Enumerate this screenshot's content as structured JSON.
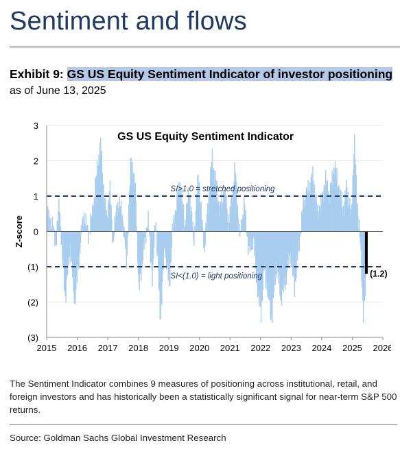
{
  "header": {
    "section_title": "Sentiment and flows"
  },
  "exhibit": {
    "label": "Exhibit 9:",
    "title": "GS US Equity Sentiment Indicator of investor positioning",
    "asof": "as of June 13, 2025"
  },
  "chart_data": {
    "type": "bar",
    "title": "GS US Equity Sentiment Indicator",
    "ylabel": "Z-score",
    "xlabel": "",
    "xlim": [
      2015,
      2026
    ],
    "ylim": [
      -3,
      3
    ],
    "x_ticks": [
      2015,
      2016,
      2017,
      2018,
      2019,
      2020,
      2021,
      2022,
      2023,
      2024,
      2025,
      2026
    ],
    "x_tick_labels": [
      "2015",
      "2016",
      "2017",
      "2018",
      "2019",
      "2020",
      "2021",
      "2022",
      "2023",
      "2024",
      "2025",
      "2026"
    ],
    "y_ticks": [
      3,
      2,
      1,
      0,
      -1,
      -2,
      -3
    ],
    "y_tick_labels": [
      "3",
      "2",
      "1",
      "0",
      "(1)",
      "(2)",
      "(3)"
    ],
    "thresholds": [
      {
        "value": 1.0,
        "label": "SI>1.0 = stretched positioning"
      },
      {
        "value": -1.0,
        "label": "SI<(1.0) = light positioning"
      }
    ],
    "latest": {
      "x": 2025.46,
      "value": -1.2,
      "label": "(1.2)"
    },
    "grid": true,
    "colors": {
      "bars": "#a9cdee",
      "threshold": "#1f3864",
      "latest": "#000000"
    },
    "series": [
      {
        "x": [
          2015.0,
          2015.15,
          2015.3,
          2015.4,
          2015.5,
          2015.6,
          2015.75,
          2015.9,
          2016.0,
          2016.1,
          2016.2,
          2016.35,
          2016.5,
          2016.6,
          2016.75,
          2016.85,
          2016.95,
          2017.05,
          2017.15,
          2017.3,
          2017.45,
          2017.6,
          2017.75,
          2017.9,
          2018.0,
          2018.15,
          2018.3,
          2018.45,
          2018.55,
          2018.7,
          2018.85,
          2019.0,
          2019.1,
          2019.2,
          2019.35,
          2019.5,
          2019.65,
          2019.8,
          2019.95,
          2020.05,
          2020.15,
          2020.25,
          2020.4,
          2020.5,
          2020.65,
          2020.8,
          2020.95,
          2021.05,
          2021.15,
          2021.3,
          2021.45,
          2021.6,
          2021.75,
          2021.9,
          2022.0,
          2022.1,
          2022.2,
          2022.35,
          2022.5,
          2022.65,
          2022.8,
          2022.95,
          2023.1,
          2023.25,
          2023.4,
          2023.55,
          2023.7,
          2023.85,
          2024.0,
          2024.1,
          2024.25,
          2024.4,
          2024.55,
          2024.7,
          2024.8,
          2024.95,
          2025.05,
          2025.15,
          2025.25,
          2025.35,
          2025.46
        ],
        "values": [
          0.5,
          0.2,
          -0.3,
          0.9,
          -0.8,
          -1.9,
          -0.4,
          -2.0,
          -1.2,
          -0.2,
          0.5,
          -0.1,
          0.6,
          1.5,
          2.5,
          1.2,
          0.3,
          1.3,
          -0.3,
          0.8,
          0.6,
          -0.9,
          2.2,
          1.0,
          -1.7,
          -0.6,
          0.4,
          -1.4,
          0.5,
          -2.5,
          -0.4,
          -1.6,
          0.0,
          0.6,
          1.4,
          0.2,
          1.2,
          -0.3,
          1.7,
          0.4,
          -0.5,
          0.6,
          2.1,
          1.5,
          0.6,
          1.2,
          0.2,
          1.0,
          1.8,
          -0.2,
          0.8,
          -0.6,
          -0.2,
          -1.8,
          -2.3,
          -1.0,
          -1.6,
          -2.5,
          -0.9,
          -1.9,
          -1.4,
          -0.6,
          -1.6,
          -0.3,
          0.9,
          1.2,
          1.6,
          0.5,
          0.9,
          1.5,
          1.0,
          1.9,
          1.2,
          0.6,
          1.3,
          0.4,
          2.6,
          0.8,
          -0.4,
          -2.4,
          -1.2
        ]
      }
    ]
  },
  "footnote": "The Sentiment Indicator combines 9 measures of positioning across institutional, retail, and foreign investors and has historically been a statistically significant signal for near-term S&P 500 returns.",
  "source": "Source: Goldman Sachs Global Investment Research"
}
